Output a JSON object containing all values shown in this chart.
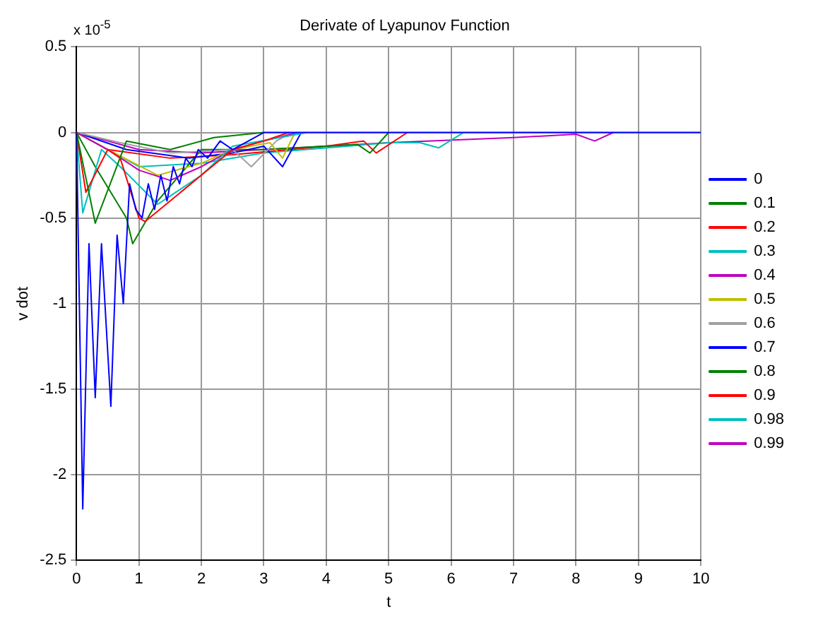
{
  "chart_data": {
    "type": "line",
    "title": "Derivate of Lyapunov Function",
    "xlabel": "t",
    "ylabel": "v dot",
    "annotations": [
      "x 10$^{-5}$"
    ],
    "xlim": [
      0,
      10
    ],
    "xticks": [
      0,
      1,
      2,
      3,
      4,
      5,
      6,
      7,
      8,
      9,
      10
    ],
    "ylim": [
      -2.5,
      0.5
    ],
    "yticks": [
      -2.5,
      -2,
      -1.5,
      -1,
      -0.5,
      0,
      0.5
    ],
    "grid": true,
    "legend": "right",
    "marker": "none",
    "line_style": "solid",
    "series": [
      {
        "name": "0",
        "color": "#0000ff",
        "x": [
          0,
          0.1,
          0.2,
          0.3,
          0.4,
          0.55,
          0.65,
          0.75,
          0.85,
          0.95,
          1.05,
          1.15,
          1.25,
          1.35,
          1.45,
          1.55,
          1.65,
          1.75,
          1.85,
          1.95,
          2.1,
          2.3,
          2.5,
          3,
          4,
          10
        ],
        "values": [
          0,
          -2.2,
          -0.65,
          -1.55,
          -0.65,
          -1.6,
          -0.6,
          -1.0,
          -0.3,
          -0.45,
          -0.5,
          -0.3,
          -0.45,
          -0.25,
          -0.4,
          -0.2,
          -0.3,
          -0.15,
          -0.2,
          -0.1,
          -0.15,
          -0.05,
          -0.1,
          0,
          0,
          0
        ]
      },
      {
        "name": "0.1",
        "color": "#008000",
        "x": [
          0,
          0.3,
          0.8,
          1.5,
          2.2,
          3
        ],
        "values": [
          0,
          -0.53,
          -0.05,
          -0.1,
          -0.03,
          0
        ]
      },
      {
        "name": "0.2",
        "color": "#ff0000",
        "x": [
          0,
          0.15,
          0.5,
          0.7,
          1.0,
          1.1,
          1.5,
          2,
          2.5,
          3,
          3.4
        ],
        "values": [
          0,
          -0.35,
          -0.1,
          -0.15,
          -0.5,
          -0.52,
          -0.4,
          -0.25,
          -0.1,
          -0.05,
          0
        ]
      },
      {
        "name": "0.3",
        "color": "#00bfbf",
        "x": [
          0,
          0.1,
          0.4,
          0.7,
          1.3,
          2,
          2.5,
          3.7
        ],
        "values": [
          0,
          -0.47,
          -0.1,
          -0.2,
          -0.42,
          -0.25,
          -0.08,
          0
        ]
      },
      {
        "name": "0.4",
        "color": "#bf00bf",
        "x": [
          0,
          0.5,
          1,
          1.5,
          2,
          2.5,
          3,
          3.55
        ],
        "values": [
          0,
          -0.1,
          -0.22,
          -0.28,
          -0.2,
          -0.1,
          -0.05,
          0
        ]
      },
      {
        "name": "0.5",
        "color": "#bfbf00",
        "x": [
          0,
          0.5,
          1.3,
          2,
          2.5,
          3.1,
          3.3,
          3.5
        ],
        "values": [
          0,
          -0.1,
          -0.25,
          -0.18,
          -0.1,
          -0.06,
          -0.15,
          0
        ]
      },
      {
        "name": "0.6",
        "color": "#a0a0a0",
        "x": [
          0,
          0.7,
          1.5,
          2.5,
          2.8,
          3.2,
          3.45
        ],
        "values": [
          0,
          -0.06,
          -0.12,
          -0.1,
          -0.2,
          -0.05,
          0
        ]
      },
      {
        "name": "0.7",
        "color": "#0000ff",
        "x": [
          0,
          0.8,
          1.8,
          2.5,
          3,
          3.3,
          3.6
        ],
        "values": [
          0,
          -0.1,
          -0.15,
          -0.12,
          -0.08,
          -0.2,
          0
        ]
      },
      {
        "name": "0.8",
        "color": "#008000",
        "x": [
          0,
          0.3,
          0.8,
          0.9,
          1.3,
          2,
          3,
          4.5,
          4.7,
          5
        ],
        "values": [
          0,
          -0.2,
          -0.5,
          -0.65,
          -0.4,
          -0.1,
          -0.1,
          -0.07,
          -0.12,
          0
        ]
      },
      {
        "name": "0.9",
        "color": "#ff0000",
        "x": [
          0,
          0.5,
          1.5,
          2.5,
          4,
          4.6,
          4.8,
          5.3
        ],
        "values": [
          0,
          -0.1,
          -0.15,
          -0.13,
          -0.08,
          -0.05,
          -0.12,
          0
        ]
      },
      {
        "name": "0.98",
        "color": "#00bfbf",
        "x": [
          0,
          0.5,
          1,
          2,
          3,
          5,
          5.5,
          5.8,
          6.2
        ],
        "values": [
          0,
          -0.1,
          -0.2,
          -0.18,
          -0.12,
          -0.06,
          -0.06,
          -0.09,
          0
        ]
      },
      {
        "name": "0.99",
        "color": "#bf00bf",
        "x": [
          0,
          0.5,
          1,
          2,
          3,
          5,
          7,
          8,
          8.3,
          8.6
        ],
        "values": [
          0,
          -0.05,
          -0.1,
          -0.12,
          -0.1,
          -0.06,
          -0.03,
          -0.01,
          -0.05,
          0
        ]
      }
    ]
  }
}
